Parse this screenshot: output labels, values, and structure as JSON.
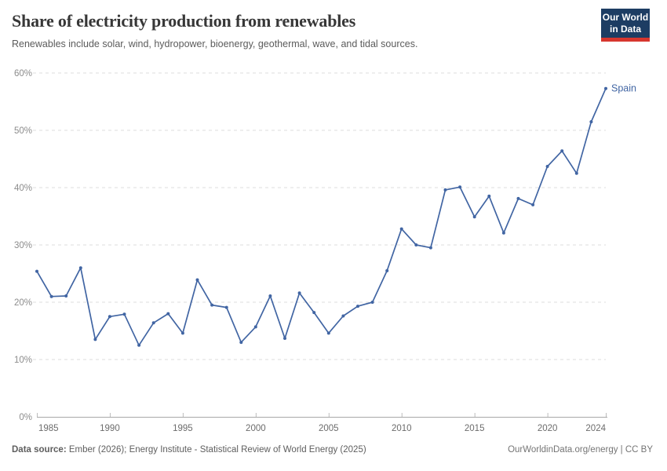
{
  "header": {
    "title": "Share of electricity production from renewables",
    "subtitle": "Renewables include solar, wind, hydropower, bioenergy, geothermal, wave, and tidal sources.",
    "logo": {
      "line1": "Our World",
      "line2": "in Data",
      "bg_color": "#1d3d63",
      "bar_color": "#d7362e"
    }
  },
  "chart_data": {
    "type": "line",
    "title": "Share of electricity production from renewables",
    "x": [
      1985,
      1986,
      1987,
      1988,
      1989,
      1990,
      1991,
      1992,
      1993,
      1994,
      1995,
      1996,
      1997,
      1998,
      1999,
      2000,
      2001,
      2002,
      2003,
      2004,
      2005,
      2006,
      2007,
      2008,
      2009,
      2010,
      2011,
      2012,
      2013,
      2014,
      2015,
      2016,
      2017,
      2018,
      2019,
      2020,
      2021,
      2022,
      2023,
      2024
    ],
    "series": [
      {
        "name": "Spain",
        "color": "#4165a3",
        "values": [
          25.4,
          21.0,
          21.1,
          26.0,
          13.5,
          17.5,
          17.9,
          12.5,
          16.4,
          18.0,
          14.6,
          23.9,
          19.5,
          19.1,
          13.0,
          15.7,
          21.1,
          13.7,
          21.6,
          18.2,
          14.6,
          17.6,
          19.3,
          20.0,
          25.5,
          32.8,
          30.0,
          29.5,
          39.6,
          40.1,
          34.9,
          38.5,
          32.1,
          38.1,
          37.0,
          43.7,
          46.4,
          42.5,
          51.5,
          57.3
        ]
      }
    ],
    "xlim": [
      1985,
      2024
    ],
    "ylim": [
      0,
      60
    ],
    "x_ticks": [
      1985,
      1990,
      1995,
      2000,
      2005,
      2010,
      2015,
      2020,
      2024
    ],
    "y_ticks": [
      0,
      10,
      20,
      30,
      40,
      50,
      60
    ],
    "y_tick_suffix": "%",
    "grid": "horizontal-dashed",
    "legend": "end-of-line-label",
    "end_label": "Spain"
  },
  "footer": {
    "datasource_label": "Data source:",
    "datasource_text": " Ember (2026); Energy Institute - Statistical Review of World Energy (2025)",
    "credit": "OurWorldinData.org/energy | CC BY"
  }
}
